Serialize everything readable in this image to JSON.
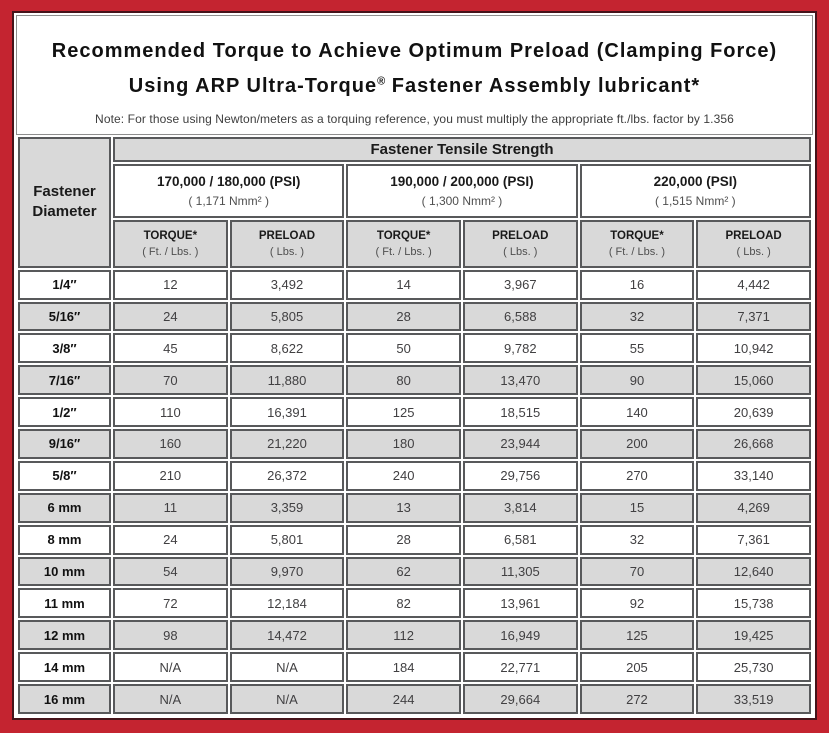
{
  "colors": {
    "frame_red": "#c42430",
    "pinstripe_dark": "#45131a",
    "cell_border_gray": "#58595b",
    "shaded_cell_gray": "#d9d9d9",
    "white": "#ffffff"
  },
  "title": {
    "line1": "Recommended Torque to Achieve Optimum Preload (Clamping Force)",
    "line2_prefix": "Using ARP Ultra-Torque",
    "line2_sup": "®",
    "line2_suffix": " Fastener Assembly lubricant*",
    "note": "Note: For those using Newton/meters as a torquing reference, you must multiply the appropriate ft./lbs. factor by 1.356"
  },
  "table": {
    "corner_header": {
      "line1": "Fastener",
      "line2": "Diameter"
    },
    "tensile_header": "Fastener Tensile Strength",
    "strength_columns": [
      {
        "psi": "170,000 / 180,000 (PSI)",
        "nmm": "( 1,171 Nmm² )"
      },
      {
        "psi": "190,000 / 200,000 (PSI)",
        "nmm": "( 1,300 Nmm² )"
      },
      {
        "psi": "220,000 (PSI)",
        "nmm": "( 1,515 Nmm² )"
      }
    ],
    "sub_headers": {
      "torque_label": "TORQUE*",
      "torque_unit": "( Ft. / Lbs. )",
      "preload_label": "PRELOAD",
      "preload_unit": "( Lbs. )"
    },
    "rows": [
      {
        "diameter": "1/4″",
        "values": [
          "12",
          "3,492",
          "14",
          "3,967",
          "16",
          "4,442"
        ]
      },
      {
        "diameter": "5/16″",
        "values": [
          "24",
          "5,805",
          "28",
          "6,588",
          "32",
          "7,371"
        ]
      },
      {
        "diameter": "3/8″",
        "values": [
          "45",
          "8,622",
          "50",
          "9,782",
          "55",
          "10,942"
        ]
      },
      {
        "diameter": "7/16″",
        "values": [
          "70",
          "11,880",
          "80",
          "13,470",
          "90",
          "15,060"
        ]
      },
      {
        "diameter": "1/2″",
        "values": [
          "110",
          "16,391",
          "125",
          "18,515",
          "140",
          "20,639"
        ]
      },
      {
        "diameter": "9/16″",
        "values": [
          "160",
          "21,220",
          "180",
          "23,944",
          "200",
          "26,668"
        ]
      },
      {
        "diameter": "5/8″",
        "values": [
          "210",
          "26,372",
          "240",
          "29,756",
          "270",
          "33,140"
        ]
      },
      {
        "diameter": "6 mm",
        "values": [
          "11",
          "3,359",
          "13",
          "3,814",
          "15",
          "4,269"
        ]
      },
      {
        "diameter": "8 mm",
        "values": [
          "24",
          "5,801",
          "28",
          "6,581",
          "32",
          "7,361"
        ]
      },
      {
        "diameter": "10 mm",
        "values": [
          "54",
          "9,970",
          "62",
          "11,305",
          "70",
          "12,640"
        ]
      },
      {
        "diameter": "11 mm",
        "values": [
          "72",
          "12,184",
          "82",
          "13,961",
          "92",
          "15,738"
        ]
      },
      {
        "diameter": "12 mm",
        "values": [
          "98",
          "14,472",
          "112",
          "16,949",
          "125",
          "19,425"
        ]
      },
      {
        "diameter": "14 mm",
        "values": [
          "N/A",
          "N/A",
          "184",
          "22,771",
          "205",
          "25,730"
        ]
      },
      {
        "diameter": "16 mm",
        "values": [
          "N/A",
          "N/A",
          "244",
          "29,664",
          "272",
          "33,519"
        ]
      }
    ]
  }
}
